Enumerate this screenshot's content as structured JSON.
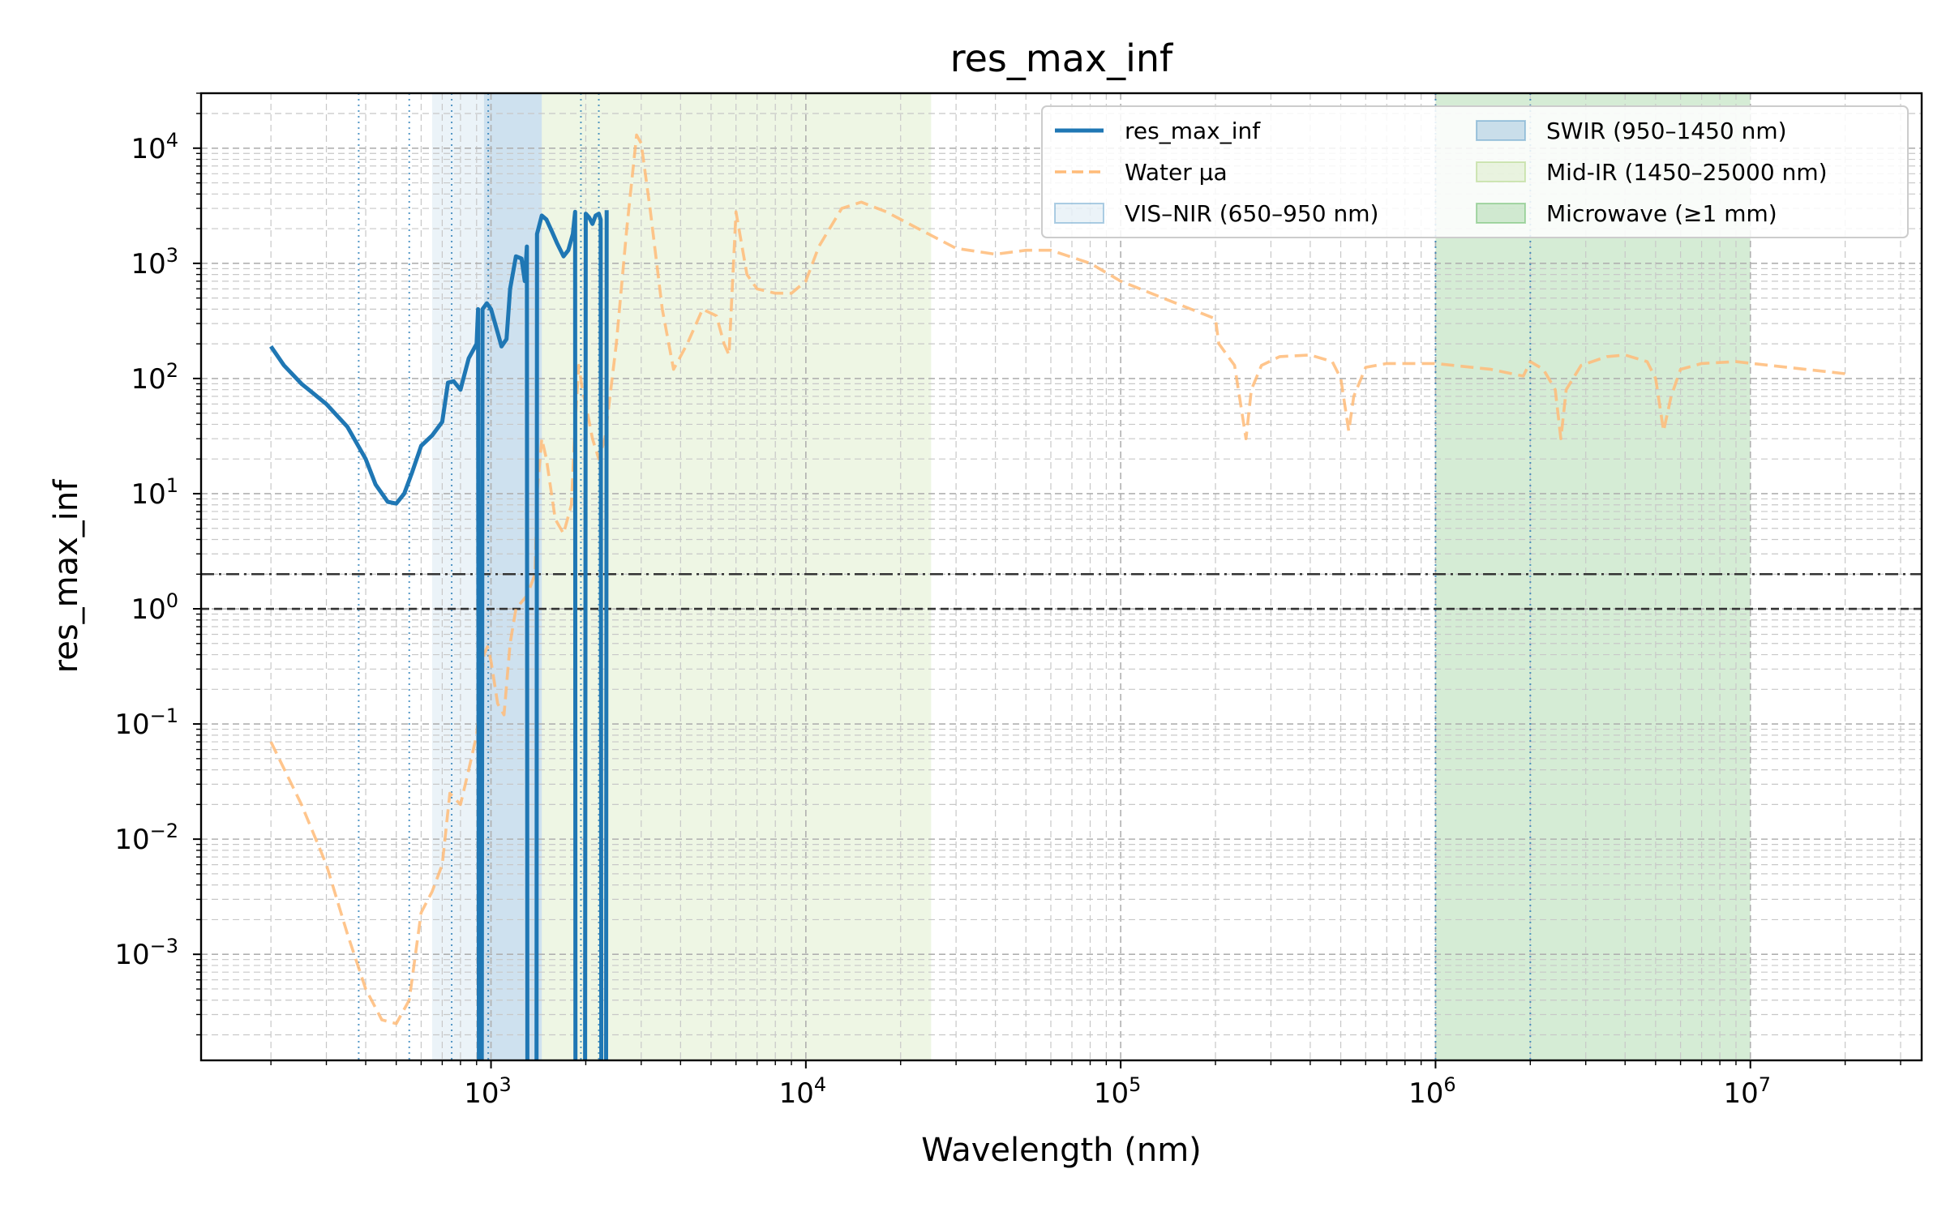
{
  "chart_data": {
    "type": "line",
    "title": "res_max_inf",
    "xlabel": "Wavelength (nm)",
    "ylabel": "res_max_inf",
    "xscale": "log",
    "yscale": "log",
    "xlim": [
      120,
      35000000
    ],
    "ylim": [
      0.00012,
      30000
    ],
    "grid": true,
    "legend_position": "top-right",
    "x_ticks": [
      {
        "base": "10",
        "exp": "3",
        "value": 1000
      },
      {
        "base": "10",
        "exp": "4",
        "value": 10000
      },
      {
        "base": "10",
        "exp": "5",
        "value": 100000
      },
      {
        "base": "10",
        "exp": "6",
        "value": 1000000
      },
      {
        "base": "10",
        "exp": "7",
        "value": 10000000
      }
    ],
    "y_ticks": [
      {
        "base": "10",
        "exp": "4",
        "value": 10000
      },
      {
        "base": "10",
        "exp": "3",
        "value": 1000
      },
      {
        "base": "10",
        "exp": "2",
        "value": 100
      },
      {
        "base": "10",
        "exp": "1",
        "value": 10
      },
      {
        "base": "10",
        "exp": "0",
        "value": 1
      },
      {
        "base": "10",
        "exp": "−1",
        "value": 0.1
      },
      {
        "base": "10",
        "exp": "−2",
        "value": 0.01
      },
      {
        "base": "10",
        "exp": "−3",
        "value": 0.001
      }
    ],
    "bands": [
      {
        "name": "VIS–NIR (650–950 nm)",
        "x0": 650,
        "x1": 950,
        "color": "#1f77b4",
        "opacity": 0.09
      },
      {
        "name": "SWIR (950–1450 nm)",
        "x0": 950,
        "x1": 1450,
        "color": "#1f77b4",
        "opacity": 0.22
      },
      {
        "name": "Mid-IR (1450–25000 nm)",
        "x0": 1450,
        "x1": 25000,
        "color": "#8bc34a",
        "opacity": 0.15
      },
      {
        "name": "Microwave (≥1 mm)",
        "x0": 1000000,
        "x1": 10000000,
        "color": "#2ca02c",
        "opacity": 0.2
      }
    ],
    "vlines": [
      380,
      550,
      750,
      980,
      1930,
      2200,
      1000000,
      2000000
    ],
    "hlines": [
      {
        "y": 2,
        "style": "dashdot"
      },
      {
        "y": 1,
        "style": "dashed"
      }
    ],
    "series": [
      {
        "name": "res_max_inf",
        "color": "#1f77b4",
        "style": "solid",
        "points": [
          [
            200,
            190
          ],
          [
            220,
            130
          ],
          [
            250,
            90
          ],
          [
            300,
            60
          ],
          [
            350,
            38
          ],
          [
            400,
            20
          ],
          [
            430,
            12
          ],
          [
            470,
            8.5
          ],
          [
            500,
            8.2
          ],
          [
            530,
            10
          ],
          [
            560,
            15
          ],
          [
            600,
            26
          ],
          [
            650,
            32
          ],
          [
            700,
            42
          ],
          [
            730,
            92
          ],
          [
            760,
            95
          ],
          [
            800,
            80
          ],
          [
            850,
            150
          ],
          [
            900,
            200
          ],
          [
            910,
            400
          ],
          [
            915,
            0.0001
          ],
          [
            935,
            0.0001
          ],
          [
            940,
            400
          ],
          [
            970,
            450
          ],
          [
            1000,
            400
          ],
          [
            1050,
            250
          ],
          [
            1080,
            190
          ],
          [
            1120,
            220
          ],
          [
            1150,
            600
          ],
          [
            1200,
            1150
          ],
          [
            1250,
            1100
          ],
          [
            1280,
            700
          ],
          [
            1300,
            1400
          ],
          [
            1305,
            0.0001
          ],
          [
            1395,
            0.0001
          ],
          [
            1400,
            1800
          ],
          [
            1450,
            2600
          ],
          [
            1500,
            2400
          ],
          [
            1560,
            1900
          ],
          [
            1620,
            1500
          ],
          [
            1700,
            1150
          ],
          [
            1760,
            1300
          ],
          [
            1820,
            1800
          ],
          [
            1850,
            2800
          ],
          [
            1855,
            0.0001
          ],
          [
            1990,
            0.0001
          ],
          [
            2000,
            2700
          ],
          [
            2050,
            2500
          ],
          [
            2100,
            2200
          ],
          [
            2150,
            2600
          ],
          [
            2200,
            2700
          ],
          [
            2230,
            2400
          ],
          [
            2240,
            0.0001
          ],
          [
            2320,
            0.0001
          ],
          [
            2330,
            2900
          ]
        ]
      },
      {
        "name": "Water μa",
        "color": "#ffbb78",
        "style": "dashed",
        "points": [
          [
            200,
            0.07
          ],
          [
            250,
            0.02
          ],
          [
            300,
            0.006
          ],
          [
            350,
            0.0015
          ],
          [
            400,
            0.0005
          ],
          [
            450,
            0.00027
          ],
          [
            500,
            0.00025
          ],
          [
            550,
            0.0004
          ],
          [
            600,
            0.0023
          ],
          [
            650,
            0.0035
          ],
          [
            700,
            0.006
          ],
          [
            740,
            0.025
          ],
          [
            800,
            0.02
          ],
          [
            850,
            0.04
          ],
          [
            900,
            0.08
          ],
          [
            950,
            0.4
          ],
          [
            975,
            0.47
          ],
          [
            1000,
            0.35
          ],
          [
            1050,
            0.15
          ],
          [
            1100,
            0.12
          ],
          [
            1150,
            0.5
          ],
          [
            1200,
            1.0
          ],
          [
            1300,
            1.3
          ],
          [
            1380,
            2
          ],
          [
            1400,
            10
          ],
          [
            1450,
            30
          ],
          [
            1500,
            20
          ],
          [
            1600,
            6
          ],
          [
            1700,
            4.5
          ],
          [
            1800,
            8
          ],
          [
            1850,
            40
          ],
          [
            1900,
            130
          ],
          [
            1950,
            80
          ],
          [
            2000,
            60
          ],
          [
            2100,
            30
          ],
          [
            2200,
            20
          ],
          [
            2300,
            30
          ],
          [
            2500,
            200
          ],
          [
            2700,
            2000
          ],
          [
            2900,
            13000
          ],
          [
            3000,
            11000
          ],
          [
            3200,
            3000
          ],
          [
            3500,
            400
          ],
          [
            3800,
            120
          ],
          [
            4200,
            200
          ],
          [
            4700,
            400
          ],
          [
            5200,
            350
          ],
          [
            5500,
            200
          ],
          [
            5700,
            160
          ],
          [
            6000,
            2800
          ],
          [
            6500,
            800
          ],
          [
            7000,
            600
          ],
          [
            8000,
            550
          ],
          [
            9000,
            550
          ],
          [
            10000,
            700
          ],
          [
            11000,
            1400
          ],
          [
            13000,
            3000
          ],
          [
            15000,
            3400
          ],
          [
            18000,
            2800
          ],
          [
            22000,
            2100
          ],
          [
            30000,
            1350
          ],
          [
            40000,
            1200
          ],
          [
            50000,
            1300
          ],
          [
            60000,
            1300
          ],
          [
            80000,
            1000
          ],
          [
            100000,
            700
          ],
          [
            150000,
            450
          ],
          [
            200000,
            330
          ],
          [
            205000,
            200
          ],
          [
            230000,
            130
          ],
          [
            250000,
            30
          ],
          [
            260000,
            80
          ],
          [
            280000,
            130
          ],
          [
            320000,
            155
          ],
          [
            400000,
            160
          ],
          [
            470000,
            140
          ],
          [
            500000,
            100
          ],
          [
            530000,
            35
          ],
          [
            550000,
            70
          ],
          [
            600000,
            125
          ],
          [
            700000,
            135
          ],
          [
            1000000,
            135
          ],
          [
            1500000,
            120
          ],
          [
            1900000,
            105
          ],
          [
            2000000,
            140
          ],
          [
            2200000,
            120
          ],
          [
            2400000,
            80
          ],
          [
            2500000,
            30
          ],
          [
            2600000,
            80
          ],
          [
            2900000,
            130
          ],
          [
            3500000,
            155
          ],
          [
            4000000,
            160
          ],
          [
            4700000,
            140
          ],
          [
            5000000,
            100
          ],
          [
            5300000,
            35
          ],
          [
            5600000,
            70
          ],
          [
            6000000,
            120
          ],
          [
            7000000,
            135
          ],
          [
            9000000,
            140
          ],
          [
            20000000,
            110
          ]
        ]
      }
    ],
    "legend_items": [
      {
        "label": "res_max_inf",
        "kind": "line",
        "color": "#1f77b4"
      },
      {
        "label": "Water μa",
        "kind": "dashed",
        "color": "#ffbb78"
      },
      {
        "label": "VIS–NIR (650–950 nm)",
        "kind": "patch",
        "color": "#1f77b4",
        "opacity": 0.09
      },
      {
        "label": "SWIR (950–1450 nm)",
        "kind": "patch",
        "color": "#1f77b4",
        "opacity": 0.22
      },
      {
        "label": "Mid-IR (1450–25000 nm)",
        "kind": "patch",
        "color": "#8bc34a",
        "opacity": 0.15
      },
      {
        "label": "Microwave (≥1 mm)",
        "kind": "patch",
        "color": "#2ca02c",
        "opacity": 0.2
      }
    ]
  }
}
